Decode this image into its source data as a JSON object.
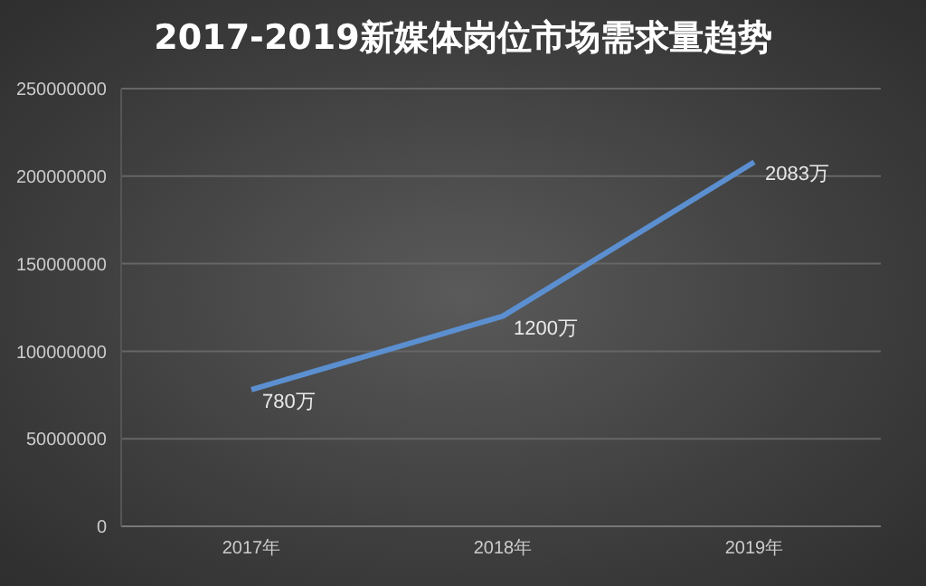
{
  "chart_data": {
    "type": "line",
    "title": "2017-2019新媒体岗位市场需求量趋势",
    "categories": [
      "2017年",
      "2018年",
      "2019年"
    ],
    "series": [
      {
        "color": "#5b8fd0",
        "values": [
          78000000,
          120000000,
          208000000
        ]
      }
    ],
    "annotations": [
      {
        "text": "780万",
        "x": "2017年",
        "y": 78000000
      },
      {
        "text": "1200万",
        "x": "2018年",
        "y": 120000000
      },
      {
        "text": "2083万",
        "x": "2019年",
        "y": 208000000
      }
    ],
    "ylim": [
      0,
      250000000
    ],
    "yticks": [
      0,
      50000000,
      100000000,
      150000000,
      200000000,
      250000000
    ],
    "grid": "y",
    "legend": false,
    "marker": "none",
    "line_style": "solid"
  }
}
